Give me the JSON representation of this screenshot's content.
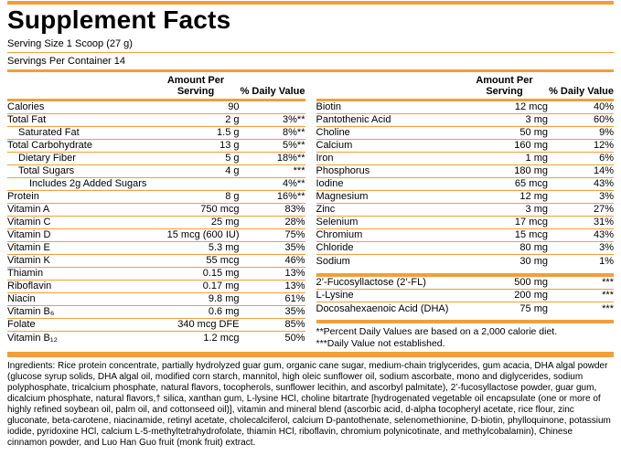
{
  "title": "Supplement Facts",
  "serving": {
    "size": "Serving Size 1 Scoop (27 g)",
    "per_container": "Servings Per Container 14"
  },
  "table_header": {
    "amount": "Amount Per Serving",
    "dv": "% Daily Value"
  },
  "left_table": {
    "rows": [
      {
        "name": "Calories",
        "amount": "90",
        "dv": "",
        "indent": 0
      },
      {
        "name": "Total Fat",
        "amount": "2 g",
        "dv": "3%**",
        "indent": 0
      },
      {
        "name": "Saturated Fat",
        "amount": "1.5 g",
        "dv": "8%**",
        "indent": 1
      },
      {
        "name": "Total Carbohydrate",
        "amount": "13 g",
        "dv": "5%**",
        "indent": 0
      },
      {
        "name": "Dietary Fiber",
        "amount": "5 g",
        "dv": "18%**",
        "indent": 1
      },
      {
        "name": "Total Sugars",
        "amount": "4 g",
        "dv": "***",
        "indent": 1
      },
      {
        "name": "Includes 2g Added Sugars",
        "amount": "",
        "dv": "4%**",
        "indent": 2
      },
      {
        "name": "Protein",
        "amount": "8 g",
        "dv": "16%**",
        "indent": 0
      },
      {
        "name": "Vitamin A",
        "amount": "750 mcg",
        "dv": "83%",
        "indent": 0
      },
      {
        "name": "Vitamin C",
        "amount": "25 mg",
        "dv": "28%",
        "indent": 0
      },
      {
        "name": "Vitamin D",
        "amount": "15 mcg (600 IU)",
        "dv": "75%",
        "indent": 0
      },
      {
        "name": "Vitamin E",
        "amount": "5.3 mg",
        "dv": "35%",
        "indent": 0
      },
      {
        "name": "Vitamin K",
        "amount": "55 mcg",
        "dv": "46%",
        "indent": 0
      },
      {
        "name": "Thiamin",
        "amount": "0.15 mg",
        "dv": "13%",
        "indent": 0
      },
      {
        "name": "Riboflavin",
        "amount": "0.17 mg",
        "dv": "13%",
        "indent": 0
      },
      {
        "name": "Niacin",
        "amount": "9.8 mg",
        "dv": "61%",
        "indent": 0
      },
      {
        "name": "Vitamin B₆",
        "amount": "0.6 mg",
        "dv": "35%",
        "indent": 0
      },
      {
        "name": "Folate",
        "amount": "340 mcg DFE",
        "dv": "85%",
        "indent": 0
      },
      {
        "name": "Vitamin B₁₂",
        "amount": "1.2 mcg",
        "dv": "50%",
        "indent": 0
      }
    ]
  },
  "right_table": {
    "rows": [
      {
        "name": "Biotin",
        "amount": "12 mcg",
        "dv": "40%",
        "indent": 0
      },
      {
        "name": "Pantothenic Acid",
        "amount": "3 mg",
        "dv": "60%",
        "indent": 0
      },
      {
        "name": "Choline",
        "amount": "50 mg",
        "dv": "9%",
        "indent": 0
      },
      {
        "name": "Calcium",
        "amount": "160 mg",
        "dv": "12%",
        "indent": 0
      },
      {
        "name": "Iron",
        "amount": "1 mg",
        "dv": "6%",
        "indent": 0
      },
      {
        "name": "Phosphorus",
        "amount": "180 mg",
        "dv": "14%",
        "indent": 0
      },
      {
        "name": "Iodine",
        "amount": "65 mcg",
        "dv": "43%",
        "indent": 0
      },
      {
        "name": "Magnesium",
        "amount": "12 mg",
        "dv": "3%",
        "indent": 0
      },
      {
        "name": "Zinc",
        "amount": "3 mg",
        "dv": "27%",
        "indent": 0
      },
      {
        "name": "Selenium",
        "amount": "17 mcg",
        "dv": "31%",
        "indent": 0
      },
      {
        "name": "Chromium",
        "amount": "15 mcg",
        "dv": "43%",
        "indent": 0
      },
      {
        "name": "Chloride",
        "amount": "80 mg",
        "dv": "3%",
        "indent": 0
      },
      {
        "name": "Sodium",
        "amount": "30 mg",
        "dv": "1%",
        "indent": 0
      }
    ]
  },
  "extra_table": {
    "rows": [
      {
        "name": "2’-Fucosyllactose (2’-FL)",
        "amount": "500 mg",
        "dv": "***",
        "indent": 0
      },
      {
        "name": "L-Lysine",
        "amount": "200 mg",
        "dv": "***",
        "indent": 0
      },
      {
        "name": "Docosahexaenoic Acid (DHA)",
        "amount": "75 mg",
        "dv": "***",
        "indent": 0
      }
    ]
  },
  "footnotes": [
    "**Percent Daily Values are based on a 2,000 calorie diet.",
    "***Daily Value not established."
  ],
  "ingredients": "Ingredients: Rice protein concentrate, partially hydrolyzed guar gum, organic cane sugar, medium-chain triglycerides, gum acacia, DHA algal powder (glucose syrup solids, DHA algal oil, modified corn starch, mannitol, high oleic sunflower oil, sodium ascorbate, mono and diglycerides, sodium polyphosphate, tricalcium phosphate, natural flavors, tocopherols, sunflower lecithin, and ascorbyl palmitate), 2’-fucosyllactose powder, guar gum, dicalcium phosphate, natural flavors,† silica, xanthan gum, L-lysine HCl, choline bitartrate [hydrogenated vegetable oil encapsulate (one or more of highly refined soybean oil, palm oil, and cottonseed oil)], vitamin and mineral blend (ascorbic acid, d-alpha tocopheryl acetate, rice flour, zinc gluconate, beta-carotene, niacinamide, retinyl acetate, cholecalciferol, calcium D-pantothenate, selenomethionine, D-biotin, phylloquinone, potassium iodide, pyridoxine HCl, calcium L-5-methyltetrahydrofolate, thiamin HCl, riboflavin, chromium polynicotinate, and methylcobalamin), Chinese cinnamon powder, and Luo Han Guo fruit (monk fruit) extract.",
  "colors": {
    "rule": "#EF9F3C"
  }
}
